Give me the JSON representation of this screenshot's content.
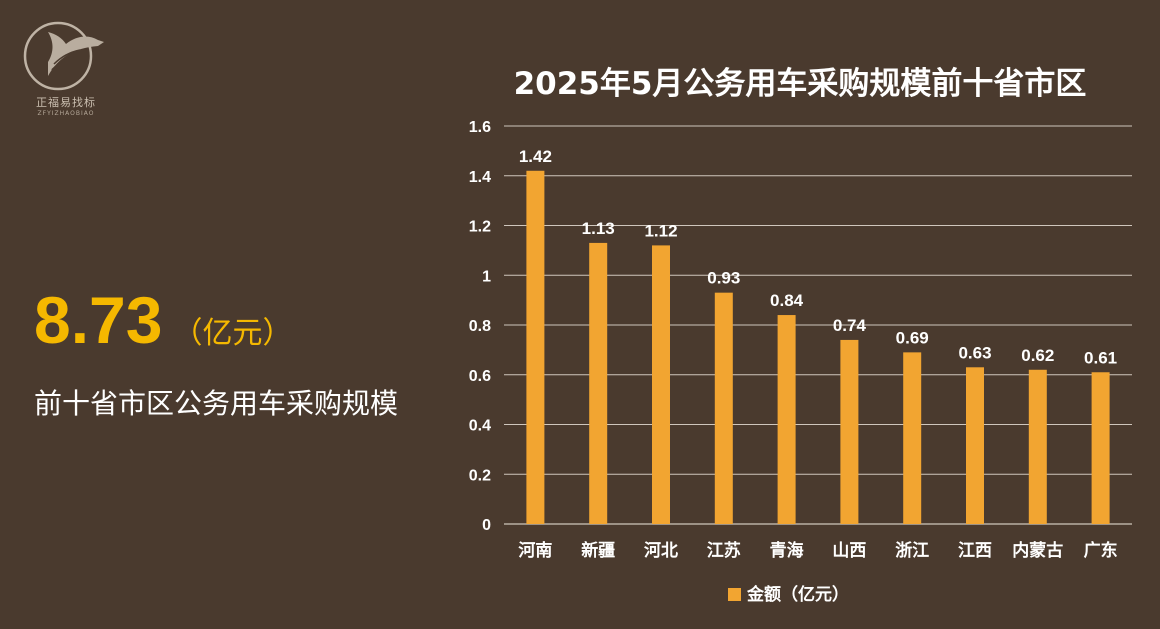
{
  "logo": {
    "text": "正福易找标",
    "sub": "ZFYIZHAOBIAO"
  },
  "summary": {
    "value": "8.73",
    "unit": "（亿元）",
    "description": "前十省市区公务用车采购规模"
  },
  "colors": {
    "background": "#4a3a2e",
    "bar": "#f2a531",
    "highlight": "#f5b800",
    "grid": "#cfc6bc"
  },
  "chart_data": {
    "type": "bar",
    "title": "2025年5月公务用车采购规模前十省市区",
    "categories": [
      "河南",
      "新疆",
      "河北",
      "江苏",
      "青海",
      "山西",
      "浙江",
      "江西",
      "内蒙古",
      "广东"
    ],
    "series": [
      {
        "name": "金额（亿元）",
        "values": [
          1.42,
          1.13,
          1.12,
          0.93,
          0.84,
          0.74,
          0.69,
          0.63,
          0.62,
          0.61
        ]
      }
    ],
    "data_labels": [
      "1.42",
      "1.13",
      "1.12",
      "0.93",
      "0.84",
      "0.74",
      "0.69",
      "0.63",
      "0.62",
      "0.61"
    ],
    "y_ticks": [
      "0",
      "0.2",
      "0.4",
      "0.6",
      "0.8",
      "1",
      "1.2",
      "1.4",
      "1.6"
    ],
    "ylim": [
      0,
      1.6
    ],
    "grid": true,
    "legend_position": "bottom"
  }
}
